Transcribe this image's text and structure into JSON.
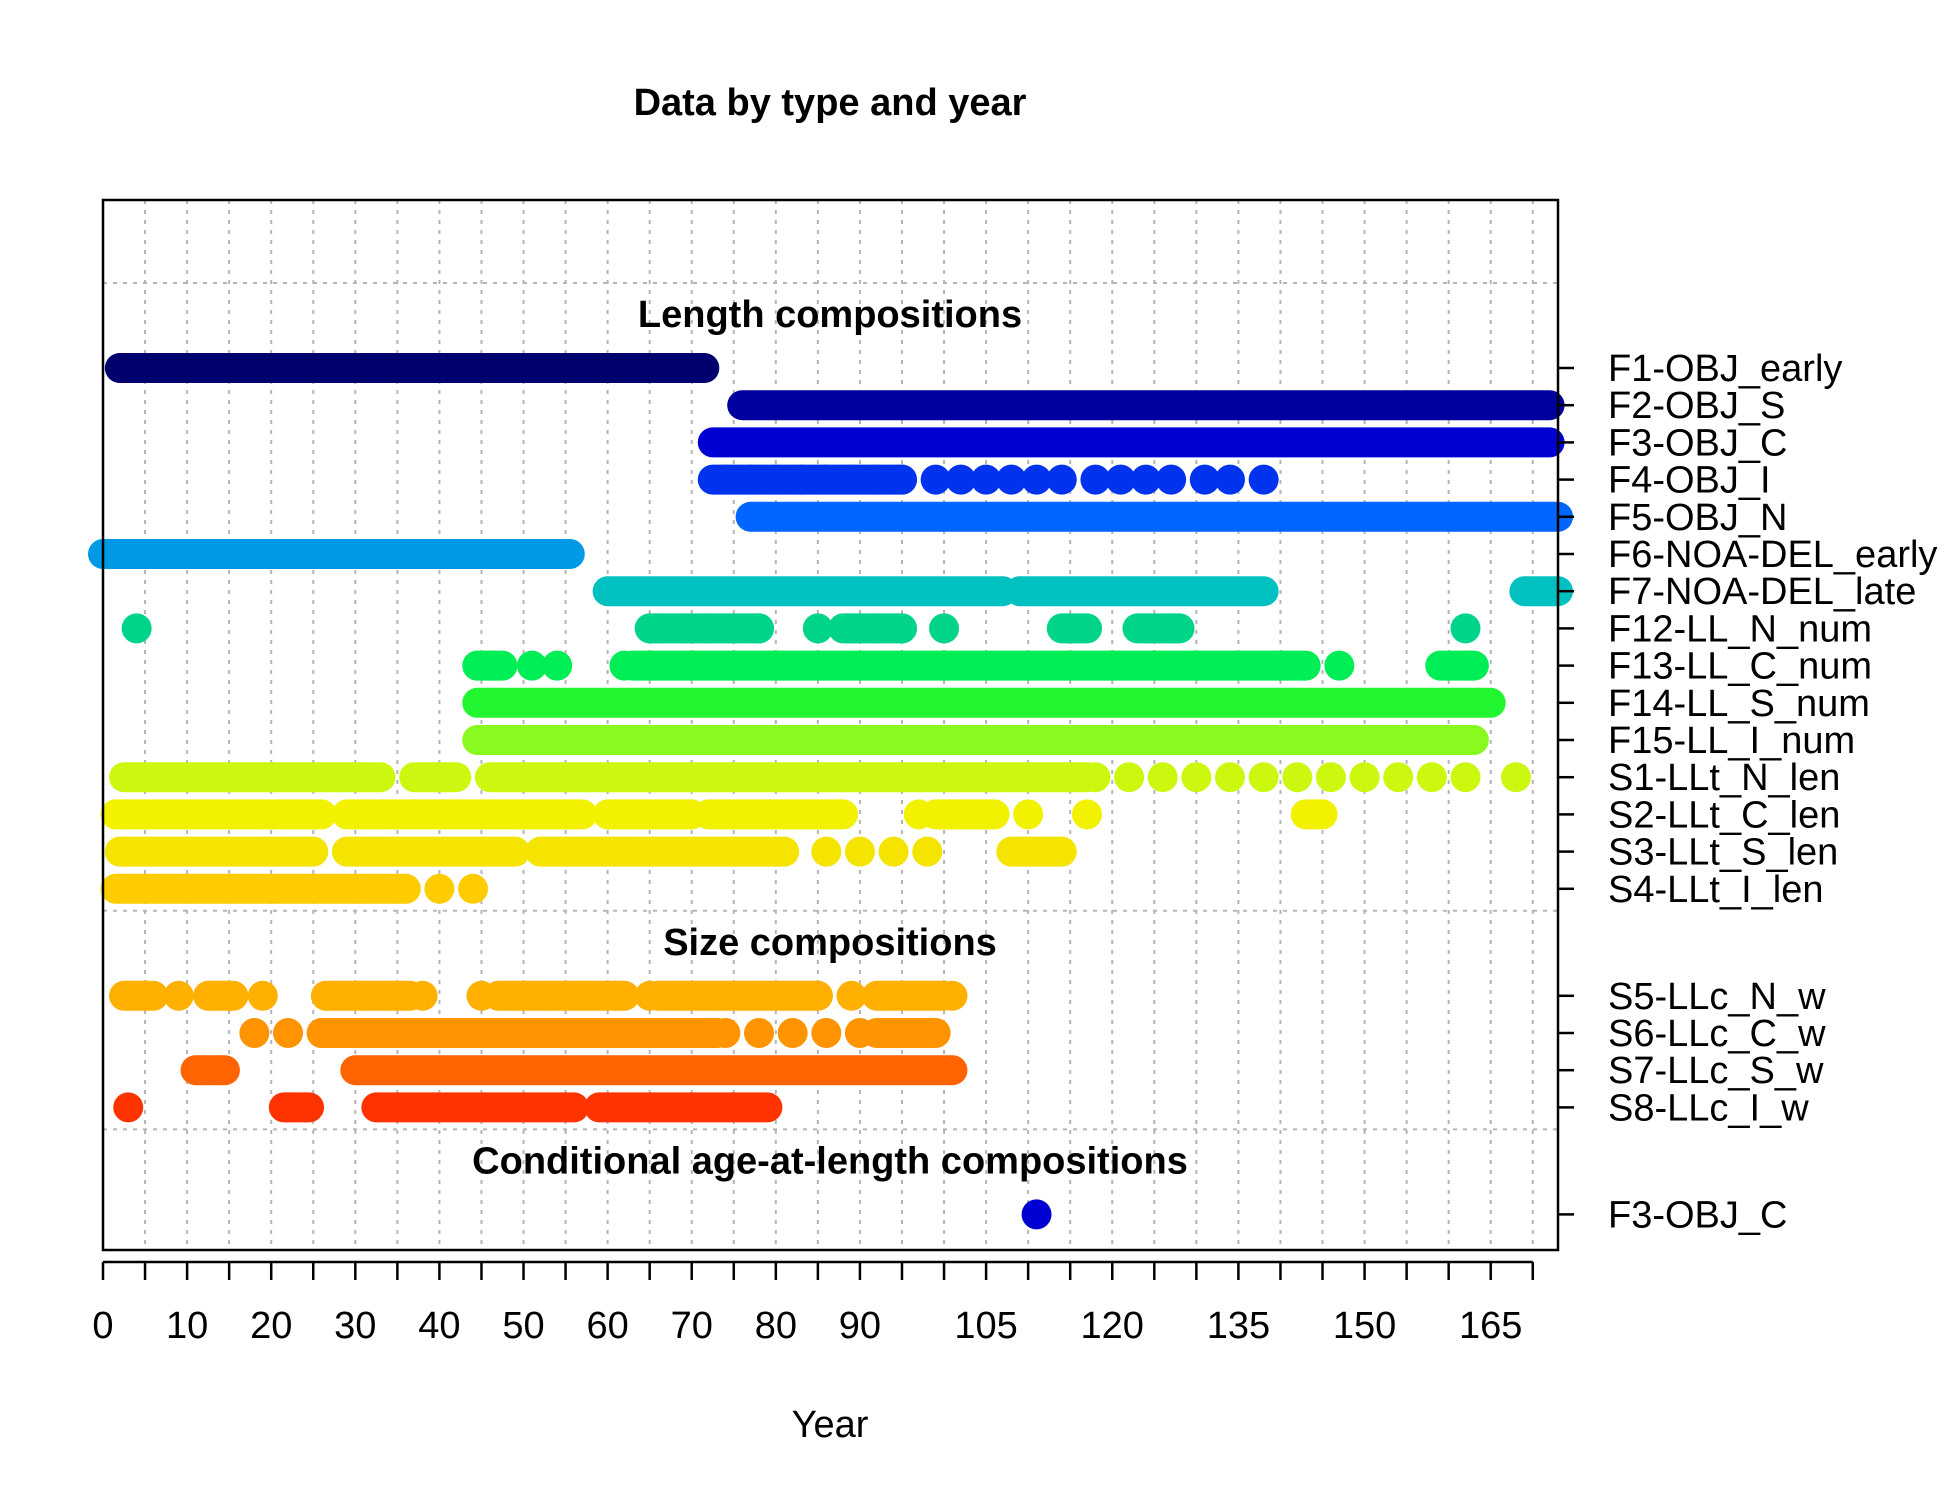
{
  "chart_data": {
    "type": "scatter",
    "title": "Data by type and year",
    "xlabel": "Year",
    "ylabel": "",
    "xlim": [
      0,
      173
    ],
    "x_ticks": [
      0,
      10,
      20,
      30,
      40,
      50,
      60,
      70,
      80,
      90,
      105,
      120,
      135,
      150,
      165
    ],
    "x_minor_step": 5,
    "grid": true,
    "sections": [
      {
        "label": "Length compositions",
        "series": [
          {
            "name": "F1-OBJ_early",
            "color": "#00006e",
            "ranges": [
              [
                2,
                71.5
              ]
            ]
          },
          {
            "name": "F2-OBJ_S",
            "color": "#00009e",
            "ranges": [
              [
                76,
                172
              ]
            ]
          },
          {
            "name": "F3-OBJ_C",
            "color": "#0000d2",
            "ranges": [
              [
                72.5,
                172
              ]
            ]
          },
          {
            "name": "F4-OBJ_I",
            "color": "#0033ee",
            "points": [
              74,
              77,
              80,
              83,
              86,
              89,
              92,
              95,
              99,
              102,
              105,
              108,
              111,
              114,
              118,
              121,
              124,
              127,
              131,
              134,
              138
            ],
            "ranges": [
              [
                72.5,
                95
              ]
            ]
          },
          {
            "name": "F5-OBJ_N",
            "color": "#0066ff",
            "ranges": [
              [
                77,
                173
              ]
            ]
          },
          {
            "name": "F6-NOA-DEL_early",
            "color": "#0099e6",
            "ranges": [
              [
                0,
                55.5
              ]
            ]
          },
          {
            "name": "F7-NOA-DEL_late",
            "color": "#00c0c0",
            "ranges": [
              [
                60,
                107
              ],
              [
                109,
                138
              ],
              [
                169,
                173
              ]
            ]
          },
          {
            "name": "F12-LL_N_num",
            "color": "#00d488",
            "points": [
              4,
              66,
              69,
              72,
              75,
              78,
              85,
              89,
              92,
              95,
              100,
              115,
              124,
              127,
              162
            ],
            "ranges": [
              [
                65,
                78
              ],
              [
                88,
                95
              ],
              [
                114,
                117
              ],
              [
                123,
                128
              ]
            ]
          },
          {
            "name": "F13-LL_C_num",
            "color": "#00ee55",
            "points": [
              46,
              51,
              54,
              62,
              147,
              162
            ],
            "ranges": [
              [
                44.5,
                47.5
              ],
              [
                63,
                143
              ],
              [
                159,
                163
              ]
            ]
          },
          {
            "name": "F14-LL_S_num",
            "color": "#22f630",
            "ranges": [
              [
                44.5,
                165
              ]
            ]
          },
          {
            "name": "F15-LL_I_num",
            "color": "#88fa20",
            "ranges": [
              [
                44.5,
                163
              ]
            ]
          },
          {
            "name": "S1-LLt_N_len",
            "color": "#ccf810",
            "points": [
              118,
              122,
              126,
              130,
              134,
              138,
              142,
              146,
              150,
              154,
              158,
              162,
              168
            ],
            "ranges": [
              [
                2.5,
                33
              ],
              [
                37,
                42
              ],
              [
                46,
                117
              ]
            ]
          },
          {
            "name": "S2-LLt_C_len",
            "color": "#f2f200",
            "points": [
              97,
              101,
              105,
              110,
              117,
              144
            ],
            "ranges": [
              [
                1.5,
                26
              ],
              [
                29,
                57
              ],
              [
                60,
                70
              ],
              [
                72,
                88
              ],
              [
                99,
                106
              ],
              [
                143,
                145
              ]
            ]
          },
          {
            "name": "S3-LLt_S_len",
            "color": "#f5e400",
            "points": [
              86,
              90,
              94,
              98
            ],
            "ranges": [
              [
                2,
                25
              ],
              [
                29,
                49
              ],
              [
                52,
                81
              ],
              [
                108,
                114
              ]
            ]
          },
          {
            "name": "S4-LLt_I_len",
            "color": "#ffcc00",
            "points": [
              40,
              44
            ],
            "ranges": [
              [
                1.5,
                36
              ]
            ]
          }
        ]
      },
      {
        "label": "Size compositions",
        "series": [
          {
            "name": "S5-LLc_N_w",
            "color": "#ffb000",
            "points": [
              3,
              5,
              9,
              13,
              15,
              19,
              27,
              31,
              34,
              38,
              45,
              49,
              53,
              57,
              61,
              65,
              69,
              73,
              77,
              81,
              85,
              89,
              93,
              97,
              101
            ],
            "ranges": [
              [
                2.5,
                6
              ],
              [
                12.5,
                15.5
              ],
              [
                26.5,
                36.5
              ],
              [
                47,
                62
              ],
              [
                66,
                85
              ],
              [
                92,
                100
              ]
            ]
          },
          {
            "name": "S6-LLc_C_w",
            "color": "#ff9400",
            "points": [
              18,
              22,
              26,
              30,
              34,
              38,
              42,
              46,
              50,
              54,
              58,
              62,
              66,
              70,
              74,
              78,
              82,
              86,
              90,
              94,
              98
            ],
            "ranges": [
              [
                26,
                73
              ],
              [
                92,
                99
              ]
            ]
          },
          {
            "name": "S7-LLc_S_w",
            "color": "#ff6400",
            "points": [
              12,
              14
            ],
            "ranges": [
              [
                11,
                14.5
              ],
              [
                30,
                101
              ]
            ]
          },
          {
            "name": "S8-LLc_I_w",
            "color": "#ff3300",
            "points": [
              3,
              22,
              24
            ],
            "ranges": [
              [
                21.5,
                24.5
              ],
              [
                32.5,
                56
              ],
              [
                59,
                79
              ]
            ]
          }
        ]
      },
      {
        "label": "Conditional age-at-length compositions",
        "series": [
          {
            "name": "F3-OBJ_C",
            "color": "#0000d2",
            "points": [
              111
            ],
            "ranges": []
          }
        ]
      }
    ]
  }
}
